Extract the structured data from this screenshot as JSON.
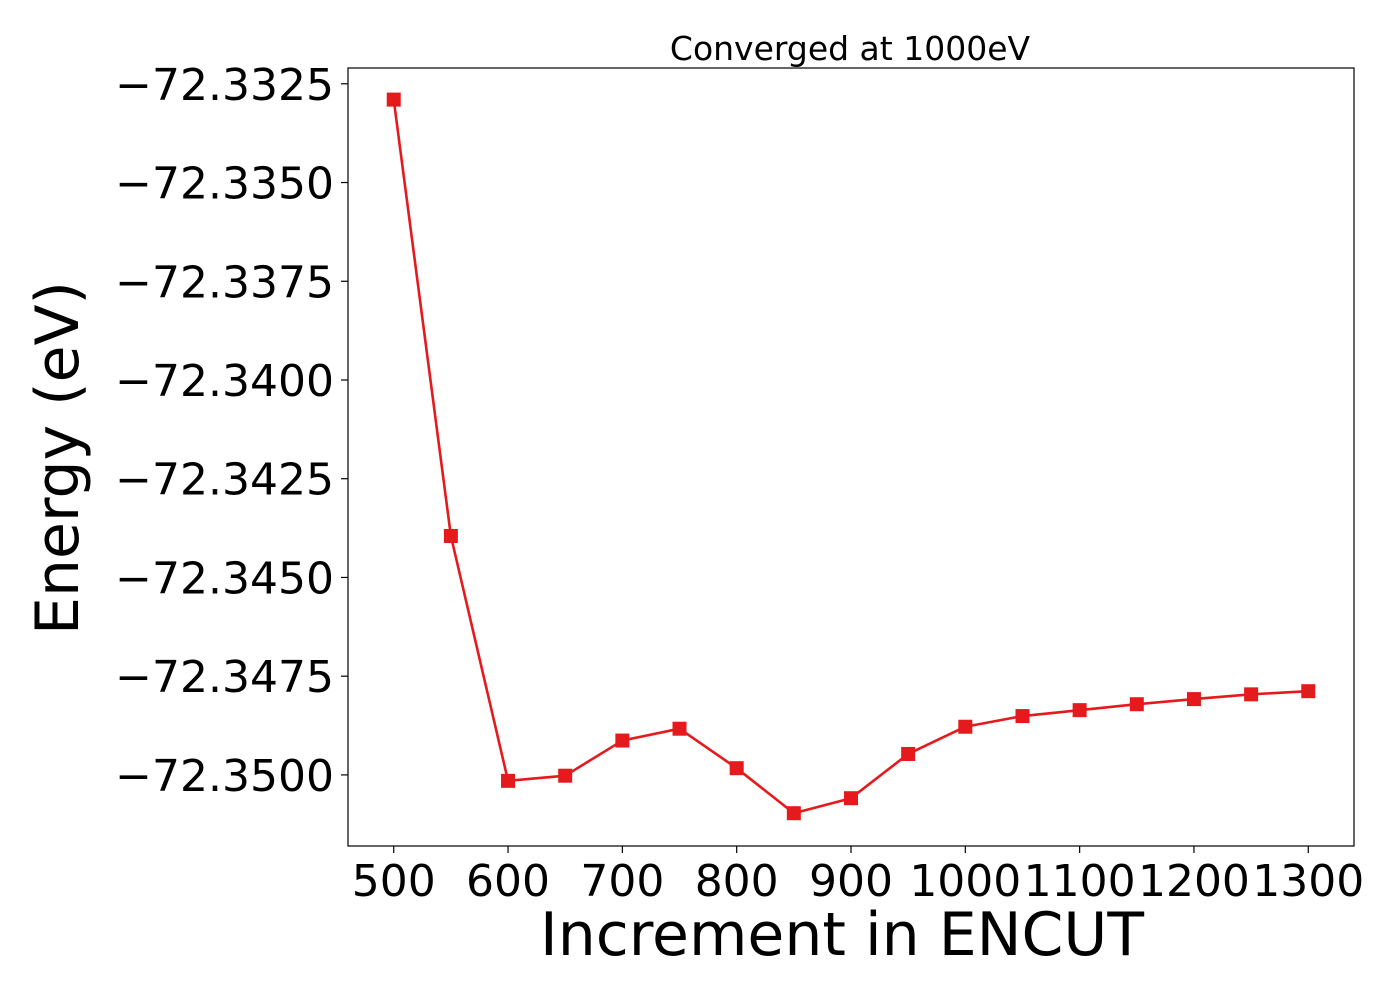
{
  "chart_data": {
    "type": "line",
    "title": "Converged at 1000eV",
    "xlabel": "Increment in ENCUT",
    "ylabel": "Energy (eV)",
    "x": [
      500,
      550,
      600,
      650,
      700,
      750,
      800,
      850,
      900,
      950,
      1000,
      1050,
      1100,
      1150,
      1200,
      1250,
      1300
    ],
    "series": [
      {
        "name": "",
        "values": [
          -72.3329,
          -72.34395,
          -72.35015,
          -72.35002,
          -72.34913,
          -72.34883,
          -72.34983,
          -72.35097,
          -72.35059,
          -72.34947,
          -72.34878,
          -72.34851,
          -72.34836,
          -72.34821,
          -72.34808,
          -72.34796,
          -72.34788
        ]
      }
    ],
    "xlim": [
      460,
      1340
    ],
    "ylim": [
      -72.3518,
      -72.3321
    ],
    "xticks": [
      500,
      600,
      700,
      800,
      900,
      1000,
      1100,
      1200,
      1300
    ],
    "xtick_labels": [
      "500",
      "600",
      "700",
      "800",
      "900",
      "1000",
      "1100",
      "1200",
      "1300"
    ],
    "yticks": [
      -72.3325,
      -72.335,
      -72.3375,
      -72.34,
      -72.3425,
      -72.345,
      -72.3475,
      -72.35
    ],
    "ytick_labels": [
      "−72.3325",
      "−72.3350",
      "−72.3375",
      "−72.3400",
      "−72.3425",
      "−72.3450",
      "−72.3475",
      "−72.3500"
    ],
    "grid": false,
    "legend": "none",
    "line_color": "#e41a1c",
    "marker": "square"
  }
}
